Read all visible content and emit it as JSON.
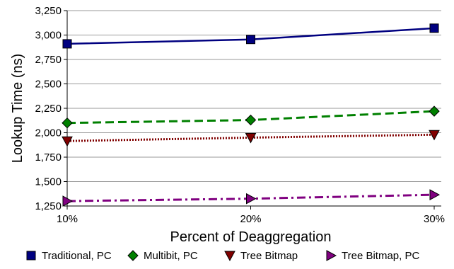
{
  "chart_data": {
    "type": "line",
    "title": "",
    "xlabel": "Percent of Deaggregation",
    "ylabel": "Lookup Time (ns)",
    "categories": [
      "10%",
      "20%",
      "30%"
    ],
    "ylim": [
      1250,
      3250
    ],
    "y_ticks": [
      1250,
      1500,
      1750,
      2000,
      2250,
      2500,
      2750,
      3000,
      3250
    ],
    "y_tick_labels": [
      "1,250",
      "1,500",
      "1,750",
      "2,000",
      "2,250",
      "2,500",
      "2,750",
      "3,000",
      "3,250"
    ],
    "grid": "horizontal",
    "legend_position": "bottom",
    "series": [
      {
        "name": "Traditional, PC",
        "values": [
          2910,
          2955,
          3070
        ],
        "color": "#000080",
        "marker": "square",
        "line_style": "solid"
      },
      {
        "name": "Multibit, PC",
        "values": [
          2100,
          2130,
          2220
        ],
        "color": "#008000",
        "marker": "diamond",
        "line_style": "dashed"
      },
      {
        "name": "Tree Bitmap",
        "values": [
          1915,
          1950,
          1980
        ],
        "color": "#800000",
        "marker": "triangle-down",
        "line_style": "dotted"
      },
      {
        "name": "Tree Bitmap, PC",
        "values": [
          1300,
          1325,
          1365
        ],
        "color": "#800080",
        "marker": "triangle-right",
        "line_style": "dash-dot"
      }
    ]
  }
}
